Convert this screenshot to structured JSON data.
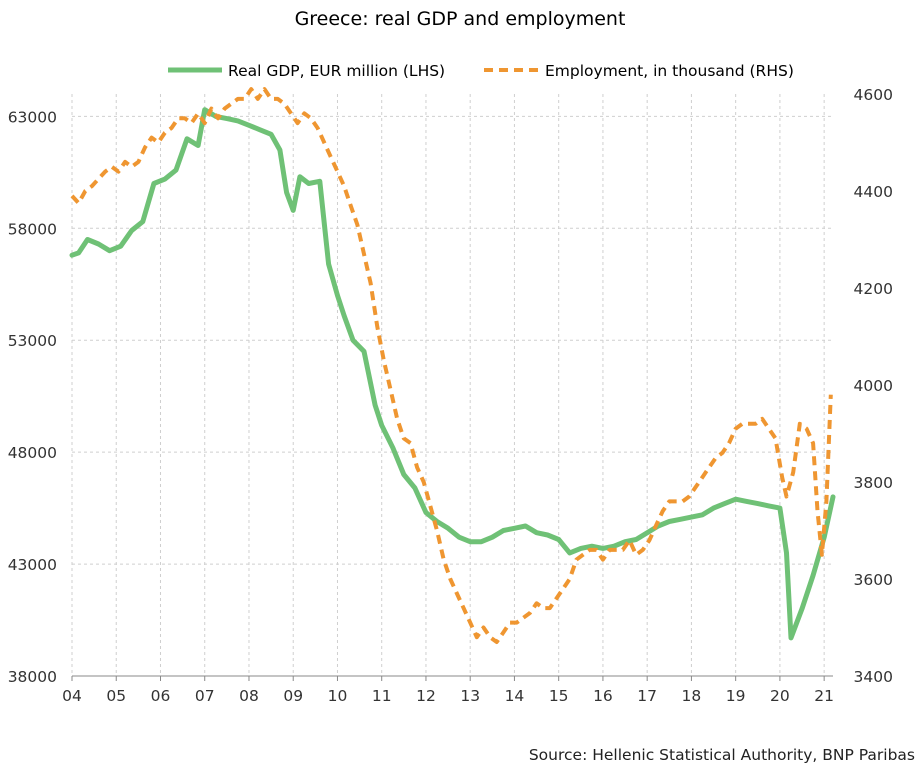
{
  "chart_data": {
    "type": "line",
    "title": "Greece: real GDP and employment",
    "source": "Source: Hellenic Statistical Authority, BNP Paribas",
    "x_ticks": [
      "04",
      "05",
      "06",
      "07",
      "08",
      "09",
      "10",
      "11",
      "12",
      "13",
      "14",
      "15",
      "16",
      "17",
      "18",
      "19",
      "20",
      "21"
    ],
    "xlim": [
      2004.0,
      2021.2
    ],
    "y_left": {
      "ticks": [
        "63000",
        "58000",
        "53000",
        "48000",
        "43000",
        "38000"
      ],
      "ylim": [
        38000,
        64000
      ]
    },
    "y_right": {
      "ticks": [
        "4600",
        "4400",
        "4200",
        "4000",
        "3800",
        "3600",
        "3400"
      ],
      "ylim": [
        3400,
        4600
      ]
    },
    "grid": true,
    "legend_position": "top",
    "series": [
      {
        "name": "Real GDP, EUR million (LHS)",
        "axis": "left",
        "color": "#6fc176",
        "style": "solid",
        "x": [
          2004.0,
          2004.15,
          2004.35,
          2004.6,
          2004.85,
          2005.1,
          2005.35,
          2005.6,
          2005.85,
          2006.1,
          2006.35,
          2006.6,
          2006.85,
          2007.0,
          2007.25,
          2007.5,
          2007.75,
          2008.0,
          2008.25,
          2008.5,
          2008.7,
          2008.85,
          2009.0,
          2009.15,
          2009.35,
          2009.6,
          2009.8,
          2010.0,
          2010.15,
          2010.35,
          2010.6,
          2010.85,
          2011.0,
          2011.25,
          2011.5,
          2011.75,
          2012.0,
          2012.25,
          2012.5,
          2012.75,
          2013.0,
          2013.25,
          2013.5,
          2013.75,
          2014.0,
          2014.25,
          2014.5,
          2014.75,
          2015.0,
          2015.25,
          2015.5,
          2015.75,
          2016.0,
          2016.25,
          2016.5,
          2016.75,
          2017.0,
          2017.25,
          2017.5,
          2017.75,
          2018.0,
          2018.25,
          2018.5,
          2018.75,
          2019.0,
          2019.25,
          2019.5,
          2019.75,
          2020.0,
          2020.15,
          2020.25,
          2020.5,
          2020.75,
          2021.0,
          2021.2
        ],
        "values": [
          56800,
          56900,
          57500,
          57300,
          57000,
          57200,
          57900,
          58300,
          60000,
          60200,
          60600,
          62000,
          61700,
          63300,
          63000,
          62900,
          62800,
          62600,
          62400,
          62200,
          61500,
          59600,
          58800,
          60300,
          60000,
          60100,
          56400,
          55000,
          54100,
          53000,
          52500,
          50100,
          49200,
          48200,
          47000,
          46400,
          45300,
          44900,
          44600,
          44200,
          44000,
          44000,
          44200,
          44500,
          44600,
          44700,
          44400,
          44300,
          44100,
          43500,
          43700,
          43800,
          43700,
          43800,
          44000,
          44100,
          44400,
          44700,
          44900,
          45000,
          45100,
          45200,
          45500,
          45700,
          45900,
          45800,
          45700,
          45600,
          45500,
          43500,
          39700,
          41000,
          42500,
          44200,
          46000
        ]
      },
      {
        "name": "Employment, in thousand (RHS)",
        "axis": "right",
        "color": "#ef9631",
        "style": "dashed",
        "x": [
          2004.0,
          2004.15,
          2004.3,
          2004.45,
          2004.6,
          2004.75,
          2004.9,
          2005.05,
          2005.2,
          2005.35,
          2005.5,
          2005.65,
          2005.8,
          2005.95,
          2006.1,
          2006.25,
          2006.4,
          2006.55,
          2006.7,
          2006.85,
          2007.0,
          2007.15,
          2007.3,
          2007.45,
          2007.6,
          2007.75,
          2007.9,
          2008.05,
          2008.2,
          2008.35,
          2008.5,
          2008.65,
          2008.8,
          2008.95,
          2009.1,
          2009.25,
          2009.4,
          2009.55,
          2009.7,
          2009.85,
          2010.0,
          2010.15,
          2010.3,
          2010.45,
          2010.6,
          2010.75,
          2010.9,
          2011.05,
          2011.2,
          2011.35,
          2011.5,
          2011.65,
          2011.8,
          2011.95,
          2012.1,
          2012.25,
          2012.4,
          2012.55,
          2012.7,
          2012.85,
          2013.0,
          2013.15,
          2013.3,
          2013.45,
          2013.6,
          2013.75,
          2013.9,
          2014.05,
          2014.2,
          2014.35,
          2014.5,
          2014.65,
          2014.8,
          2014.95,
          2015.1,
          2015.25,
          2015.4,
          2015.55,
          2015.7,
          2015.85,
          2016.0,
          2016.15,
          2016.3,
          2016.45,
          2016.6,
          2016.75,
          2016.9,
          2017.05,
          2017.2,
          2017.35,
          2017.5,
          2017.65,
          2017.8,
          2017.95,
          2018.1,
          2018.25,
          2018.4,
          2018.55,
          2018.7,
          2018.85,
          2019.0,
          2019.15,
          2019.3,
          2019.45,
          2019.6,
          2019.75,
          2019.9,
          2020.05,
          2020.15,
          2020.3,
          2020.45,
          2020.6,
          2020.75,
          2020.85,
          2020.95,
          2021.05,
          2021.15
        ],
        "values": [
          4390,
          4375,
          4400,
          4410,
          4425,
          4440,
          4450,
          4440,
          4460,
          4450,
          4460,
          4490,
          4510,
          4500,
          4520,
          4530,
          4550,
          4550,
          4540,
          4560,
          4540,
          4570,
          4550,
          4570,
          4580,
          4590,
          4590,
          4610,
          4590,
          4610,
          4590,
          4590,
          4580,
          4560,
          4540,
          4560,
          4550,
          4530,
          4500,
          4470,
          4440,
          4410,
          4370,
          4330,
          4270,
          4210,
          4120,
          4050,
          3990,
          3930,
          3890,
          3880,
          3830,
          3800,
          3750,
          3700,
          3640,
          3600,
          3570,
          3540,
          3510,
          3480,
          3500,
          3480,
          3470,
          3490,
          3510,
          3510,
          3520,
          3530,
          3550,
          3540,
          3540,
          3560,
          3580,
          3600,
          3640,
          3650,
          3660,
          3660,
          3640,
          3660,
          3660,
          3660,
          3680,
          3650,
          3660,
          3680,
          3710,
          3740,
          3760,
          3760,
          3760,
          3770,
          3790,
          3810,
          3830,
          3850,
          3860,
          3880,
          3910,
          3920,
          3920,
          3920,
          3930,
          3910,
          3890,
          3810,
          3770,
          3820,
          3920,
          3910,
          3880,
          3740,
          3650,
          3760,
          3980
        ]
      }
    ]
  }
}
